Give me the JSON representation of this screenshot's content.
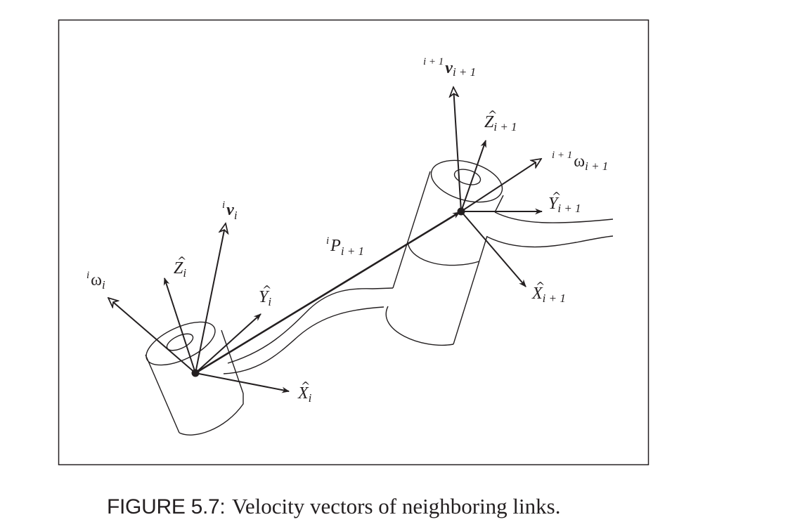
{
  "figure": {
    "caption_label": "FIGURE 5.7:",
    "caption_text": "Velocity vectors of neighboring links."
  },
  "labels": {
    "omega_i": {
      "pre": "i",
      "main": "ω",
      "sub": "i"
    },
    "z_i": {
      "pre": "",
      "main": "Z",
      "sub": "i"
    },
    "v_i": {
      "pre": "i",
      "main": "v",
      "sub": "i"
    },
    "y_i": {
      "pre": "",
      "main": "Y",
      "sub": "i"
    },
    "x_i": {
      "pre": "",
      "main": "X",
      "sub": "i"
    },
    "p_i_plus_1": {
      "pre": "i",
      "main": "P",
      "sub": "i + 1"
    },
    "v_i_plus_1": {
      "pre": "i + 1",
      "main": "v",
      "sub": "i + 1"
    },
    "z_i_plus_1": {
      "pre": "",
      "main": "Z",
      "sub": "i + 1"
    },
    "omega_i_plus_1": {
      "pre": "i + 1",
      "main": "ω",
      "sub": "i + 1"
    },
    "y_i_plus_1": {
      "pre": "",
      "main": "Y",
      "sub": "i + 1"
    },
    "x_i_plus_1": {
      "pre": "",
      "main": "X",
      "sub": "i + 1"
    }
  },
  "hat_glyph": "^"
}
